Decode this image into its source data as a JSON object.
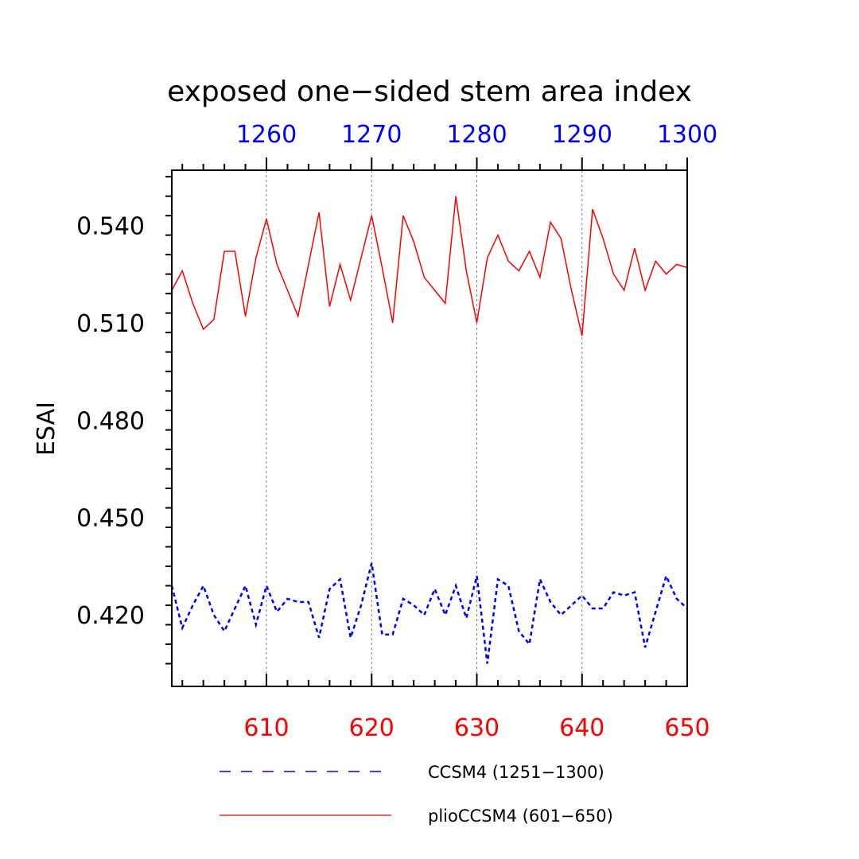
{
  "chart_data": {
    "type": "line",
    "title": "exposed one−sided stem area index",
    "ylabel": "ESAI",
    "xlabel": "",
    "grid": "vertical dotted at major x ticks",
    "legend_position": "bottom",
    "colors": {
      "bottom_axis": "#ff0000",
      "top_axis": "#0000ff",
      "axes": "#000000",
      "grid": "#808080"
    },
    "x_bottom": {
      "range": [
        601,
        650
      ],
      "major_ticks": [
        610,
        620,
        630,
        640,
        650
      ],
      "tick_labels": [
        "610",
        "620",
        "630",
        "640",
        "650"
      ]
    },
    "x_top": {
      "range": [
        1251,
        1300
      ],
      "major_ticks": [
        1260,
        1270,
        1280,
        1290,
        1300
      ],
      "tick_labels": [
        "1260",
        "1270",
        "1280",
        "1290",
        "1300"
      ]
    },
    "y": {
      "range": [
        0.398,
        0.557
      ],
      "major_ticks": [
        0.42,
        0.45,
        0.48,
        0.51,
        0.54
      ],
      "tick_labels": [
        "0.420",
        "0.450",
        "0.480",
        "0.510",
        "0.540"
      ]
    },
    "series": [
      {
        "name": "CCSM4 (1251−1300)",
        "color": "#0000ff",
        "dash": "dashed",
        "axis": "top",
        "x": [
          1251,
          1252,
          1253,
          1254,
          1255,
          1256,
          1257,
          1258,
          1259,
          1260,
          1261,
          1262,
          1263,
          1264,
          1265,
          1266,
          1267,
          1268,
          1269,
          1270,
          1271,
          1272,
          1273,
          1274,
          1275,
          1276,
          1277,
          1278,
          1279,
          1280,
          1281,
          1282,
          1283,
          1284,
          1285,
          1286,
          1287,
          1288,
          1289,
          1290,
          1291,
          1292,
          1293,
          1294,
          1295,
          1296,
          1297,
          1298,
          1299,
          1300
        ],
        "values": [
          0.429,
          0.416,
          0.423,
          0.429,
          0.42,
          0.415,
          0.422,
          0.429,
          0.417,
          0.429,
          0.421,
          0.425,
          0.424,
          0.424,
          0.413,
          0.428,
          0.431,
          0.413,
          0.423,
          0.436,
          0.414,
          0.414,
          0.425,
          0.423,
          0.42,
          0.428,
          0.42,
          0.429,
          0.419,
          0.432,
          0.405,
          0.431,
          0.429,
          0.415,
          0.411,
          0.431,
          0.424,
          0.42,
          0.423,
          0.426,
          0.422,
          0.422,
          0.427,
          0.426,
          0.427,
          0.41,
          0.421,
          0.432,
          0.425,
          0.422
        ]
      },
      {
        "name": "plioCCSM4 (601−650)",
        "color": "#ff0000",
        "dash": "solid",
        "axis": "bottom",
        "x": [
          601,
          602,
          603,
          604,
          605,
          606,
          607,
          608,
          609,
          610,
          611,
          612,
          613,
          614,
          615,
          616,
          617,
          618,
          619,
          620,
          621,
          622,
          623,
          624,
          625,
          626,
          627,
          628,
          629,
          630,
          631,
          632,
          633,
          634,
          635,
          636,
          637,
          638,
          639,
          640,
          641,
          642,
          643,
          644,
          645,
          646,
          647,
          648,
          649,
          650
        ],
        "values": [
          0.52,
          0.526,
          0.516,
          0.508,
          0.511,
          0.532,
          0.532,
          0.512,
          0.53,
          0.542,
          0.528,
          0.52,
          0.512,
          0.528,
          0.544,
          0.515,
          0.528,
          0.517,
          0.53,
          0.543,
          0.527,
          0.51,
          0.543,
          0.535,
          0.524,
          0.52,
          0.516,
          0.549,
          0.526,
          0.51,
          0.53,
          0.537,
          0.529,
          0.526,
          0.532,
          0.524,
          0.541,
          0.536,
          0.52,
          0.506,
          0.545,
          0.536,
          0.525,
          0.52,
          0.533,
          0.52,
          0.529,
          0.525,
          0.528,
          0.527
        ]
      }
    ]
  }
}
